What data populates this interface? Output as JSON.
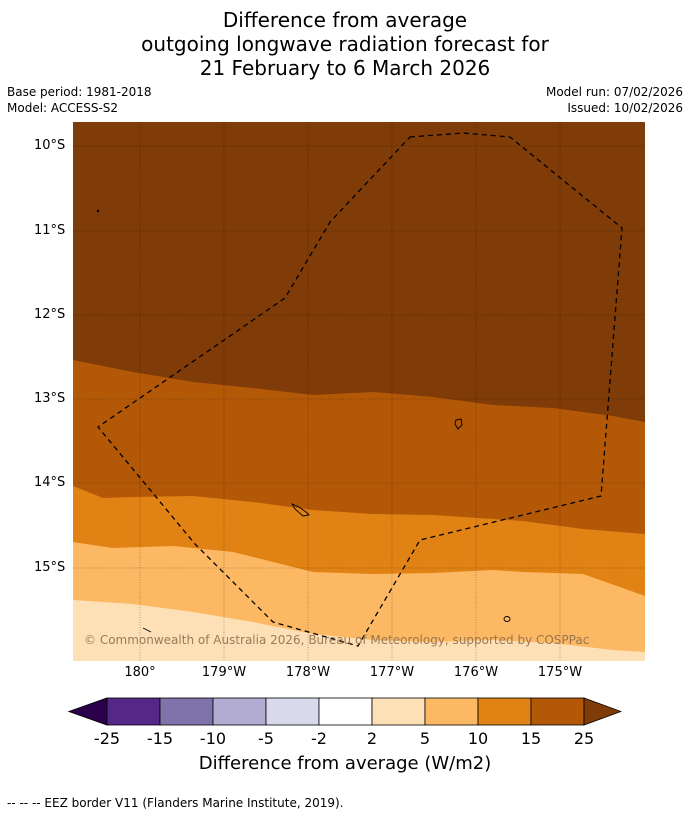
{
  "title": {
    "line1": "Difference from average",
    "line2": "outgoing longwave radiation forecast for",
    "line3": "21 February to 6 March 2026"
  },
  "meta": {
    "base_period": "Base period: 1981-2018",
    "model": "Model: ACCESS-S2",
    "model_run": "Model run: 07/02/2026",
    "issued": "Issued: 10/02/2026"
  },
  "map": {
    "lat_labels": [
      "10°S",
      "11°S",
      "12°S",
      "13°S",
      "14°S",
      "15°S"
    ],
    "lon_labels": [
      "180°",
      "179°W",
      "178°W",
      "177°W",
      "176°W",
      "175°W"
    ],
    "copyright": "© Commonwealth of Australia 2026, Bureau of Meteorology, supported by COSPPac",
    "colors": {
      "25plus": "#7f3b08",
      "15to25": "#b35806",
      "10to15": "#e08214",
      "5to10": "#fdb863",
      "2to5": "#fee0b6"
    }
  },
  "colorbar": {
    "ticks": [
      "-25",
      "-15",
      "-10",
      "-5",
      "-2",
      "2",
      "5",
      "10",
      "15",
      "25"
    ],
    "colors": [
      "#2d004b",
      "#542788",
      "#8073ac",
      "#b2abd2",
      "#d8daeb",
      "#ffffff",
      "#fee0b6",
      "#fdb863",
      "#e08214",
      "#b35806",
      "#7f3b08"
    ],
    "title": "Difference from average (W/m2)"
  },
  "footer": "--  --  -- EEZ border V11 (Flanders Marine Institute, 2019)."
}
